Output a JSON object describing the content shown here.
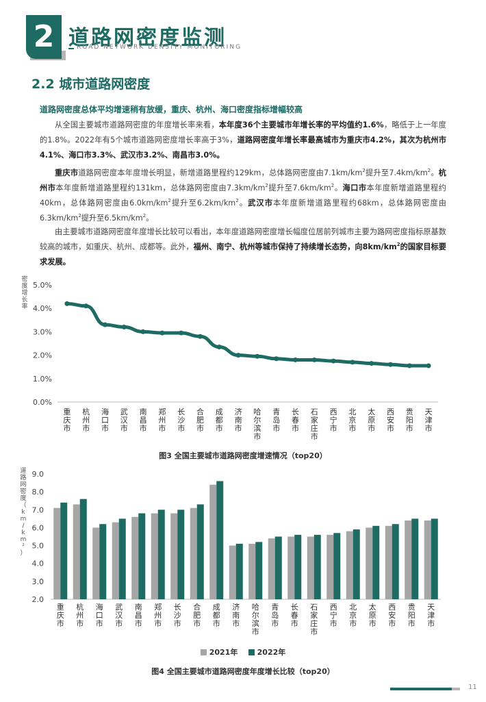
{
  "header": {
    "chapter_number": "2",
    "chapter_title": "道路网密度监测",
    "chapter_subtitle": "ROAD NETWORK DENSITY MONITORING"
  },
  "section": {
    "title": "2.2 城市道路网密度",
    "subtitle": "道路网密度总体平均增速稍有放缓，重庆、杭州、海口密度指标增幅较高"
  },
  "paragraphs": {
    "p1": {
      "a": "从全国主要城市道路网密度的年度增长率来看，",
      "b": "本年度36个主要城市年增长率的平均值约1.6%",
      "c": "，略低于上一年度的1.8%。2022年有5个城市道路网密度增长率高于3%，",
      "d": "道路网密度年增长率最高城市为重庆市4.2%，其次为杭州市4.1%、海口市3.3%、武汉市3.2%、南昌市3.0%。"
    },
    "p2": {
      "c1": "重庆市",
      "t1": "道路网密度本年度增长明显，新增道路里程约129km，总体路网密度由7.1km/km",
      "t1b": "提升至7.4km/km",
      "t1c": "。",
      "c2": "杭州市",
      "t2": "本年度新增道路里程约131km，总体路网密度由7.3km/km",
      "t2b": "提升至7.6km/km",
      "t2c": "。",
      "c3": "海口市",
      "t3": "本年度新增道路里程约40km，总体路网密度由6.0km/km",
      "t3b": "提升至6.2km/km",
      "t3c": "。",
      "c4": "武汉市",
      "t4": "本年度新增道路里程约68km，总体路网密度由6.3km/km",
      "t4b": "提升至6.5km/km",
      "t4c": "。",
      "sup": "2"
    },
    "p3": {
      "a": "由主要城市道路网密度年度增长比较可以看出，本年度道路网密度增长幅度位居前列城市主要为路网密度指标原基数较高的城市，如重庆、杭州、成都等。此外，",
      "b": "福州、南宁、杭州等城市保持了持续增长态势，向8km/km",
      "b2": "的国家目标要求发展。"
    }
  },
  "chart_data": [
    {
      "type": "line",
      "title": "图3 全国主要城市道路网密度增速情况（top20）",
      "ylabel": "密度增长率",
      "ylim": [
        0,
        5
      ],
      "yticks": [
        "0.0%",
        "1.0%",
        "2.0%",
        "3.0%",
        "4.0%",
        "5.0%"
      ],
      "categories": [
        "重庆市",
        "杭州市",
        "海口市",
        "武汉市",
        "南昌市",
        "郑州市",
        "长沙市",
        "合肥市",
        "成都市",
        "济南市",
        "哈尔滨市",
        "青岛市",
        "长春市",
        "石家庄市",
        "西宁市",
        "北京市",
        "太原市",
        "西安市",
        "贵阳市",
        "天津市"
      ],
      "values": [
        4.2,
        4.1,
        3.3,
        3.2,
        3.0,
        2.95,
        2.95,
        2.8,
        2.35,
        2.0,
        1.95,
        1.85,
        1.8,
        1.8,
        1.75,
        1.7,
        1.65,
        1.6,
        1.55,
        1.55
      ],
      "color": "#1d6b63"
    },
    {
      "type": "bar",
      "title": "图4 全国主要城市道路网密度年度增长比较（top20）",
      "ylabel": "道路网密度（km/km²）",
      "ylim": [
        2,
        9
      ],
      "yticks": [
        "2.0",
        "3.0",
        "4.0",
        "5.0",
        "6.0",
        "7.0",
        "8.0",
        "9.0"
      ],
      "categories": [
        "重庆市",
        "杭州市",
        "海口市",
        "武汉市",
        "南昌市",
        "郑州市",
        "长沙市",
        "合肥市",
        "成都市",
        "济南市",
        "哈尔滨市",
        "青岛市",
        "长春市",
        "石家庄市",
        "西宁市",
        "北京市",
        "太原市",
        "西安市",
        "贵阳市",
        "天津市"
      ],
      "series": [
        {
          "name": "2021年",
          "color": "#a6a6a6",
          "values": [
            7.1,
            7.3,
            6.0,
            6.3,
            6.6,
            6.8,
            6.8,
            7.1,
            8.4,
            5.0,
            5.1,
            5.4,
            5.5,
            5.5,
            5.6,
            5.8,
            6.0,
            6.1,
            6.4,
            6.4
          ]
        },
        {
          "name": "2022年",
          "color": "#1d6b63",
          "values": [
            7.4,
            7.6,
            6.2,
            6.5,
            6.8,
            7.0,
            7.0,
            7.3,
            8.6,
            5.1,
            5.2,
            5.5,
            5.6,
            5.6,
            5.7,
            5.9,
            6.1,
            6.2,
            6.5,
            6.5
          ]
        }
      ]
    }
  ],
  "footer": {
    "page_number": "11"
  }
}
